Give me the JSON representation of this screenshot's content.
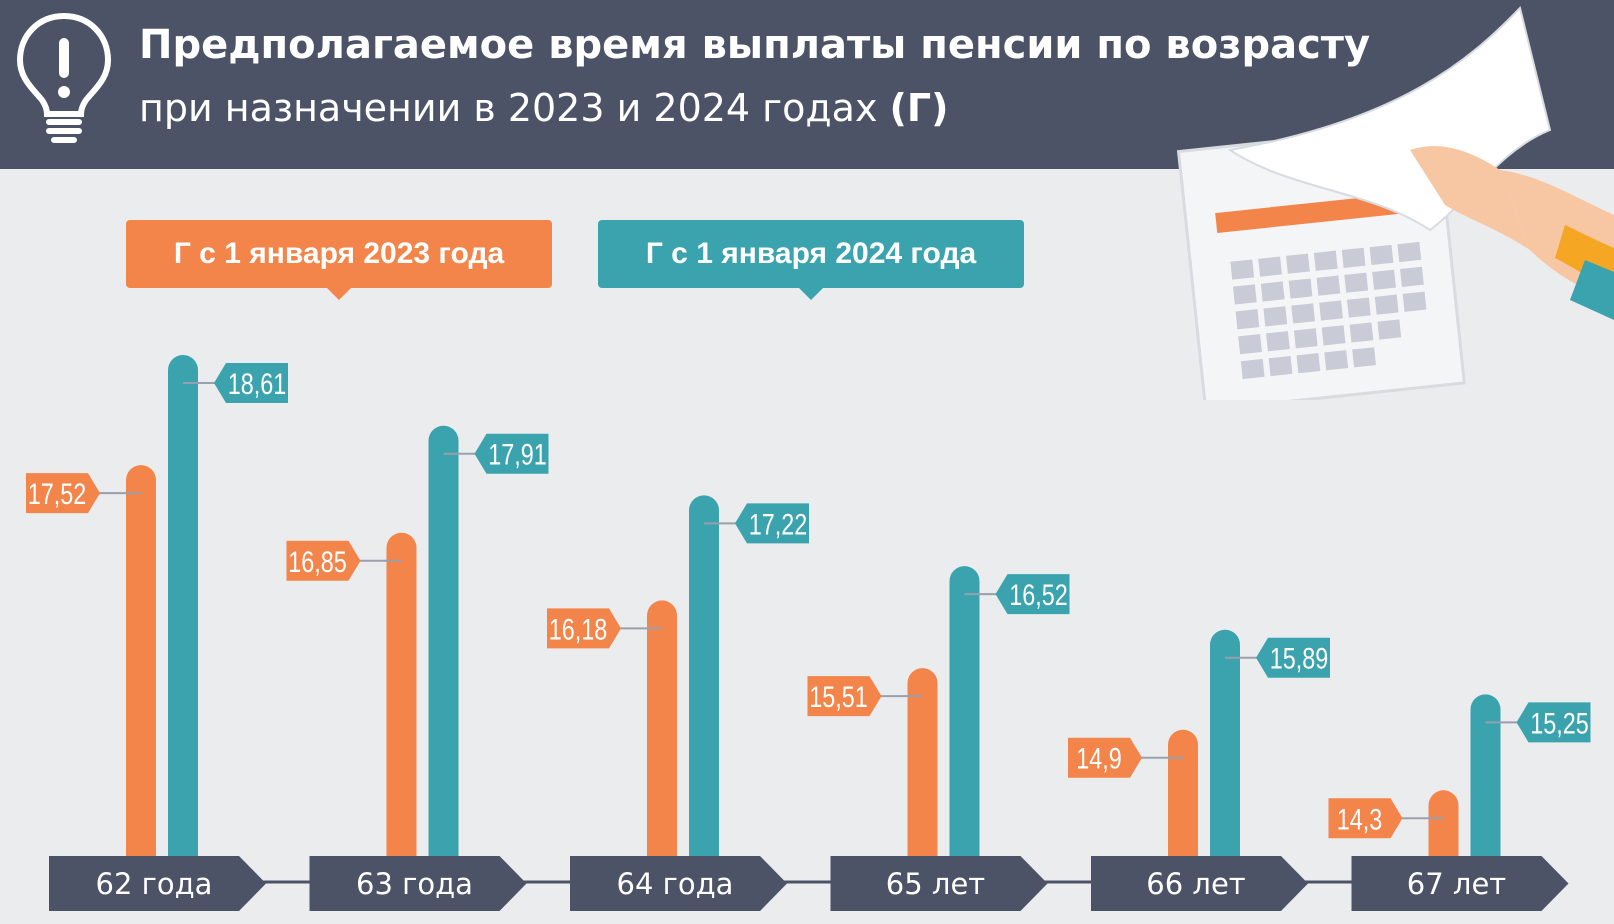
{
  "header": {
    "title": "Предполагаемое время выплаты пенсии по возрасту",
    "subtitle_main": "при назначении в 2023 и 2024 годах ",
    "subtitle_unit": "(Г)",
    "icons": [
      "lightbulb-exclamation-icon",
      "calendar-in-hand-icon"
    ]
  },
  "colors": {
    "header_bg": "#4d5366",
    "background": "#ebecee",
    "series_2023": "#f3844a",
    "series_2024": "#3aa3ae",
    "category_tag": "#4d5366"
  },
  "chart_data": {
    "type": "bar",
    "title": "Предполагаемое время выплаты пенсии по возрасту при назначении в 2023 и 2024 годах (Г)",
    "unit": "Г",
    "categories": [
      "62 года",
      "63 года",
      "64 года",
      "65 лет",
      "66 лет",
      "67 лет"
    ],
    "series": [
      {
        "name": "Г с 1 января 2023 года",
        "values": [
          17.52,
          16.85,
          16.18,
          15.51,
          14.9,
          14.3
        ],
        "labels": [
          "17,52",
          "16,85",
          "16,18",
          "15,51",
          "14,9",
          "14,3"
        ]
      },
      {
        "name": "Г с 1 января 2024 года",
        "values": [
          18.61,
          17.91,
          17.22,
          16.52,
          15.89,
          15.25
        ],
        "labels": [
          "18,61",
          "17,91",
          "17,22",
          "16,52",
          "15,89",
          "15,25"
        ]
      }
    ],
    "legend": "top-left",
    "grid": false
  }
}
